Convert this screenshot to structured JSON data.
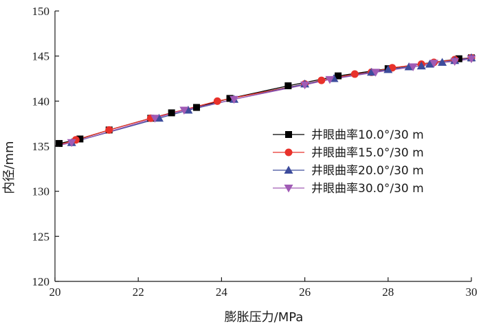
{
  "chart_data": {
    "type": "line",
    "xlabel": "膨胀压力/MPa",
    "ylabel": "内径/mm",
    "xlim": [
      20,
      30
    ],
    "ylim": [
      120,
      150
    ],
    "xticks": [
      20,
      22,
      24,
      26,
      28,
      30
    ],
    "yticks": [
      120,
      125,
      130,
      135,
      140,
      145,
      150
    ],
    "grid": false,
    "legend_position": "center-right",
    "series": [
      {
        "name": "井眼曲率10.0°/30 m",
        "color": "#000000",
        "marker": "square",
        "x": [
          20.0,
          20.1,
          20.6,
          21.3,
          22.3,
          22.8,
          23.4,
          24.2,
          25.6,
          26.8,
          28.0,
          29.7,
          30.0
        ],
        "y": [
          135.0,
          135.3,
          135.8,
          136.8,
          138.1,
          138.7,
          139.3,
          140.3,
          141.7,
          142.8,
          143.6,
          144.7,
          144.8
        ]
      },
      {
        "name": "井眼曲率15.0°/30 m",
        "color": "#e8312a",
        "marker": "circle",
        "x": [
          20.0,
          20.5,
          21.3,
          22.3,
          23.9,
          26.0,
          26.4,
          27.2,
          27.6,
          28.1,
          28.8,
          29.1,
          29.6,
          30.0
        ],
        "y": [
          135.0,
          135.7,
          136.8,
          138.1,
          140.0,
          141.9,
          142.3,
          143.0,
          143.2,
          143.7,
          144.1,
          144.3,
          144.6,
          144.8
        ]
      },
      {
        "name": "井眼曲率20.0°/30 m",
        "color": "#3d4c9c",
        "marker": "triangle-up",
        "x": [
          20.0,
          20.4,
          22.5,
          23.2,
          24.3,
          26.0,
          26.7,
          27.6,
          28.0,
          28.5,
          28.8,
          29.0,
          29.3,
          29.6,
          30.0
        ],
        "y": [
          135.0,
          135.4,
          138.1,
          139.0,
          140.2,
          141.9,
          142.5,
          143.2,
          143.5,
          143.8,
          143.9,
          144.1,
          144.3,
          144.5,
          144.8
        ]
      },
      {
        "name": "井眼曲率30.0°/30 m",
        "color": "#a05bb5",
        "marker": "triangle-down",
        "x": [
          20.0,
          20.4,
          22.4,
          23.1,
          24.3,
          26.0,
          26.6,
          27.7,
          28.6,
          29.1,
          29.6,
          30.0
        ],
        "y": [
          135.0,
          135.4,
          138.1,
          139.0,
          140.2,
          141.8,
          142.4,
          143.2,
          143.8,
          144.2,
          144.4,
          144.7
        ]
      }
    ]
  }
}
